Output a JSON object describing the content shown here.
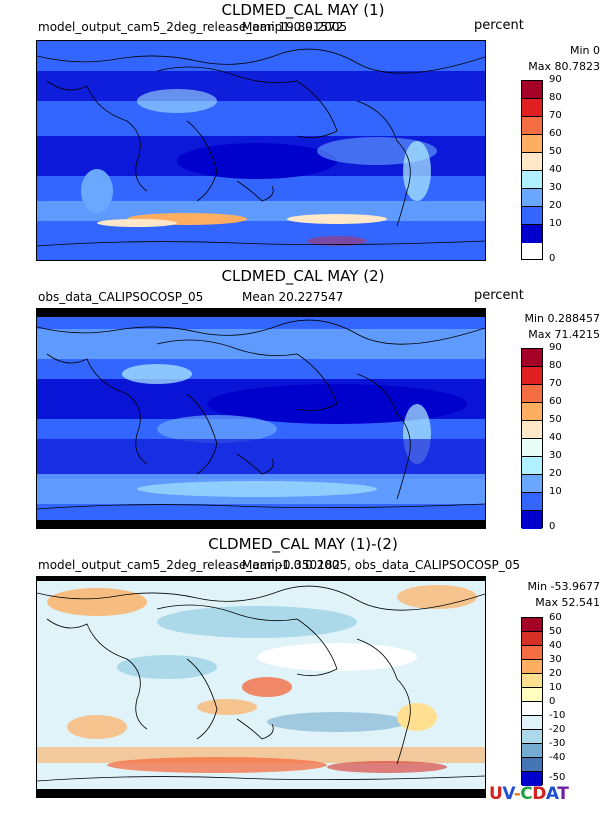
{
  "panels": [
    {
      "title": "CLDMED_CAL MAY (1)",
      "source": "model_output_cam5_2deg_release_amip1.0.0.2005",
      "mean": "Mean 19.891572",
      "units": "percent",
      "min": "Min 0",
      "max": "Max 80.7823",
      "levels": [
        "90",
        "80",
        "70",
        "60",
        "50",
        "40",
        "30",
        "20",
        "10",
        "0"
      ],
      "colors": [
        "#a50026",
        "#e02020",
        "#f46d43",
        "#fdae61",
        "#fee8c8",
        "#ffffff",
        "#b0f0ff",
        "#6aa8ff",
        "#3366ff",
        "#0000cc"
      ]
    },
    {
      "title": "CLDMED_CAL MAY (2)",
      "source": "obs_data_CALIPSOCOSP_05",
      "mean": "Mean 20.227547",
      "units": "percent",
      "min": "Min 0.288457",
      "max": "Max 71.4215",
      "levels": [
        "90",
        "80",
        "70",
        "60",
        "50",
        "40",
        "30",
        "20",
        "10",
        "0"
      ],
      "colors": [
        "#a50026",
        "#e02020",
        "#f46d43",
        "#fdae61",
        "#fee8c8",
        "#ffffff",
        "#b0f0ff",
        "#6aa8ff",
        "#3366ff",
        "#0000cc"
      ]
    },
    {
      "title": "CLDMED_CAL MAY (1)-(2)",
      "source": "model_output_cam5_2deg_release_amip1.0.0.2005, obs_data_CALIPSOCOSP_05",
      "mean": "Mean -0.350182",
      "units": "",
      "min": "Min -53.9677",
      "max": "Max 52.541",
      "levels": [
        "60",
        "50",
        "40",
        "30",
        "20",
        "10",
        "0",
        "-10",
        "-20",
        "-30",
        "-40",
        "-50"
      ],
      "colors": [
        "#a50026",
        "#d73027",
        "#f46d43",
        "#fdae61",
        "#fee090",
        "#ffffbf",
        "#ffffff",
        "#e0f3f8",
        "#abd9e9",
        "#74add1",
        "#4575b4",
        "#0000cc"
      ]
    }
  ],
  "logo": "UV-CDAT"
}
